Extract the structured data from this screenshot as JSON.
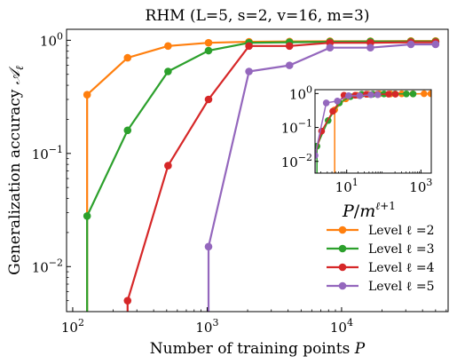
{
  "chart_data": [
    {
      "type": "line",
      "title": "RHM (L=5, s=2, v=16, m=3)",
      "xlabel": "Number of training points P",
      "ylabel": "Generalization accuracy 𝒜ℓ",
      "xscale": "log",
      "yscale": "log",
      "xlim": [
        90,
        62000
      ],
      "ylim": [
        0.004,
        1.25
      ],
      "xticks": [
        {
          "value": 100,
          "base": "10",
          "exp": "2"
        },
        {
          "value": 1000,
          "base": "10",
          "exp": "3"
        },
        {
          "value": 10000,
          "base": "10",
          "exp": "4"
        }
      ],
      "yticks": [
        {
          "value": 0.01,
          "base": "10",
          "exp": "−2"
        },
        {
          "value": 0.1,
          "base": "10",
          "exp": "−1"
        },
        {
          "value": 1,
          "base": "10",
          "exp": "0"
        }
      ],
      "legend_position": "bottom-right",
      "grid": false,
      "series": [
        {
          "name": "Level ℓ =2",
          "color": "#ff7f0e",
          "x": [
            128,
            256,
            512,
            1024,
            2048,
            4096,
            8192,
            16384,
            32768,
            50000
          ],
          "y": [
            0.33,
            0.7,
            0.89,
            0.95,
            0.97,
            0.975,
            0.98,
            0.98,
            0.985,
            0.985
          ]
        },
        {
          "name": "Level ℓ =3",
          "color": "#2ca02c",
          "x": [
            128,
            256,
            512,
            1024,
            2048,
            4096,
            8192,
            16384,
            32768,
            50000
          ],
          "y": [
            0.028,
            0.16,
            0.53,
            0.81,
            0.95,
            0.96,
            0.97,
            0.975,
            0.975,
            0.975
          ]
        },
        {
          "name": "Level ℓ =4",
          "color": "#d62728",
          "x": [
            256,
            512,
            1024,
            2048,
            4096,
            8192,
            16384,
            32768,
            50000
          ],
          "y": [
            0.005,
            0.078,
            0.3,
            0.89,
            0.89,
            0.95,
            0.95,
            0.96,
            0.96
          ]
        },
        {
          "name": "Level ℓ =5",
          "color": "#9467bd",
          "x": [
            1024,
            2048,
            4096,
            8192,
            16384,
            32768,
            50000
          ],
          "y": [
            0.015,
            0.53,
            0.6,
            0.86,
            0.86,
            0.92,
            0.92
          ]
        }
      ]
    },
    {
      "type": "scatter",
      "inset": true,
      "xlabel": "P/m^(ℓ+1)",
      "xscale": "log",
      "yscale": "log",
      "xlim": [
        1.4,
        1900
      ],
      "ylim": [
        0.0045,
        1.3
      ],
      "xticks": [
        {
          "value": 10,
          "base": "10",
          "exp": "1"
        },
        {
          "value": 1000,
          "base": "10",
          "exp": "3"
        }
      ],
      "yticks": [
        {
          "value": 0.01,
          "base": "10",
          "exp": "−2"
        },
        {
          "value": 0.1,
          "base": "10",
          "exp": "−1"
        },
        {
          "value": 1,
          "base": "10",
          "exp": "0"
        }
      ],
      "series": [
        {
          "name": "Level ℓ =2",
          "color": "#ff7f0e",
          "x": [
            4.74,
            9.48,
            18.96,
            37.9,
            75.9,
            151.7,
            303.4,
            606.8,
            1213.6,
            1851.9
          ],
          "y": [
            0.33,
            0.7,
            0.89,
            0.95,
            0.97,
            0.975,
            0.98,
            0.98,
            0.985,
            0.985
          ]
        },
        {
          "name": "Level ℓ =3",
          "color": "#2ca02c",
          "x": [
            1.58,
            3.16,
            6.32,
            12.64,
            25.28,
            50.6,
            101.1,
            202.3,
            404.5,
            617.3
          ],
          "y": [
            0.028,
            0.16,
            0.53,
            0.81,
            0.95,
            0.96,
            0.97,
            0.975,
            0.975,
            0.975
          ]
        },
        {
          "name": "Level ℓ =4",
          "color": "#d62728",
          "x": [
            1.05,
            2.11,
            4.21,
            8.43,
            16.86,
            33.7,
            67.4,
            134.8,
            205.8
          ],
          "y": [
            0.005,
            0.078,
            0.3,
            0.89,
            0.89,
            0.95,
            0.95,
            0.96,
            0.96
          ]
        },
        {
          "name": "Level ℓ =5",
          "color": "#9467bd",
          "x": [
            1.4,
            2.81,
            5.62,
            11.24,
            22.47,
            44.9,
            68.6
          ],
          "y": [
            0.015,
            0.53,
            0.6,
            0.86,
            0.86,
            0.92,
            0.92
          ]
        }
      ]
    }
  ]
}
